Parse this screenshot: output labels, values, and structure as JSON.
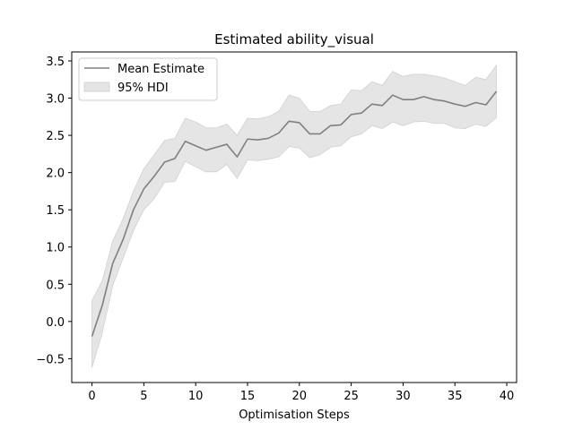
{
  "chart_data": {
    "type": "line",
    "title": "Estimated ability_visual",
    "xlabel": "Optimisation Steps",
    "ylabel": "",
    "xlim": [
      -1.95,
      40.95
    ],
    "ylim": [
      -0.82,
      3.62
    ],
    "x_ticks": [
      0,
      5,
      10,
      15,
      20,
      25,
      30,
      35,
      40
    ],
    "y_ticks": [
      -0.5,
      0.0,
      0.5,
      1.0,
      1.5,
      2.0,
      2.5,
      3.0,
      3.5
    ],
    "x_tick_labels": [
      "0",
      "5",
      "10",
      "15",
      "20",
      "25",
      "30",
      "35",
      "40"
    ],
    "y_tick_labels": [
      "−0.5",
      "0.0",
      "0.5",
      "1.0",
      "1.5",
      "2.0",
      "2.5",
      "3.0",
      "3.5"
    ],
    "legend_position": "upper-left",
    "grid": false,
    "x": [
      0,
      1,
      2,
      3,
      4,
      5,
      6,
      7,
      8,
      9,
      10,
      11,
      12,
      13,
      14,
      15,
      16,
      17,
      18,
      19,
      20,
      21,
      22,
      23,
      24,
      25,
      26,
      27,
      28,
      29,
      30,
      31,
      32,
      33,
      34,
      35,
      36,
      37,
      38,
      39
    ],
    "series": [
      {
        "name": "Mean Estimate",
        "color": "#808080",
        "values": [
          -0.2,
          0.22,
          0.78,
          1.1,
          1.5,
          1.78,
          1.95,
          2.14,
          2.19,
          2.42,
          2.36,
          2.3,
          2.34,
          2.38,
          2.21,
          2.45,
          2.44,
          2.46,
          2.53,
          2.69,
          2.67,
          2.52,
          2.52,
          2.63,
          2.64,
          2.78,
          2.8,
          2.92,
          2.9,
          3.04,
          2.98,
          2.98,
          3.02,
          2.98,
          2.96,
          2.92,
          2.89,
          2.94,
          2.91,
          3.09
        ]
      }
    ],
    "bands": [
      {
        "name": "95% HDI",
        "color": "#e5e5e5",
        "edge": "#d0d0d0",
        "lower": [
          -0.62,
          -0.15,
          0.48,
          0.85,
          1.22,
          1.5,
          1.65,
          1.87,
          1.88,
          2.15,
          2.08,
          2.01,
          2.01,
          2.11,
          1.92,
          2.17,
          2.16,
          2.18,
          2.21,
          2.35,
          2.33,
          2.2,
          2.24,
          2.34,
          2.36,
          2.48,
          2.52,
          2.63,
          2.59,
          2.68,
          2.63,
          2.68,
          2.69,
          2.66,
          2.66,
          2.6,
          2.59,
          2.65,
          2.62,
          2.74
        ],
        "upper": [
          0.28,
          0.55,
          1.08,
          1.38,
          1.75,
          2.05,
          2.24,
          2.43,
          2.46,
          2.73,
          2.68,
          2.6,
          2.6,
          2.65,
          2.5,
          2.73,
          2.72,
          2.75,
          2.82,
          3.04,
          3.0,
          2.82,
          2.82,
          2.9,
          2.92,
          3.11,
          3.1,
          3.22,
          3.17,
          3.36,
          3.29,
          3.32,
          3.32,
          3.3,
          3.27,
          3.22,
          3.17,
          3.28,
          3.25,
          3.44
        ]
      }
    ],
    "legend": {
      "entries": [
        {
          "label": "Mean Estimate",
          "kind": "line",
          "color": "#808080"
        },
        {
          "label": "95% HDI",
          "kind": "band",
          "color": "#e5e5e5"
        }
      ]
    }
  }
}
